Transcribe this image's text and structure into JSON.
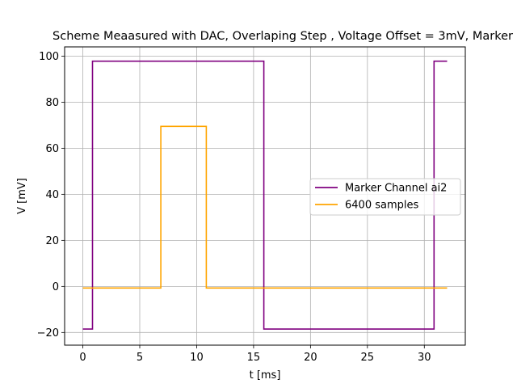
{
  "chart_data": {
    "type": "line",
    "title": "Scheme Meaasured with DAC, Overlaping Step , Voltage Offset = 3mV, Marker",
    "xlabel": "t  [ms]",
    "ylabel": "V  [mV]",
    "xlim": [
      -1.6,
      33.6
    ],
    "ylim": [
      -25.5,
      104
    ],
    "xticks": [
      0,
      5,
      10,
      15,
      20,
      25,
      30
    ],
    "yticks": [
      -20,
      0,
      20,
      40,
      60,
      80,
      100
    ],
    "grid": true,
    "legend_position": "center-right",
    "series": [
      {
        "name": "Marker Channel ai2",
        "color": "#800080",
        "x": [
          0,
          0.85,
          0.85,
          15.9,
          15.9,
          30.85,
          30.85,
          32.0
        ],
        "y": [
          -18.5,
          -18.5,
          97.8,
          97.8,
          -18.5,
          -18.5,
          97.8,
          97.8
        ]
      },
      {
        "name": "6400 samples",
        "color": "#ffa500",
        "x": [
          0,
          6.85,
          6.85,
          10.85,
          10.85,
          32.0
        ],
        "y": [
          -0.7,
          -0.7,
          69.5,
          69.5,
          -0.7,
          -0.7
        ]
      }
    ]
  }
}
